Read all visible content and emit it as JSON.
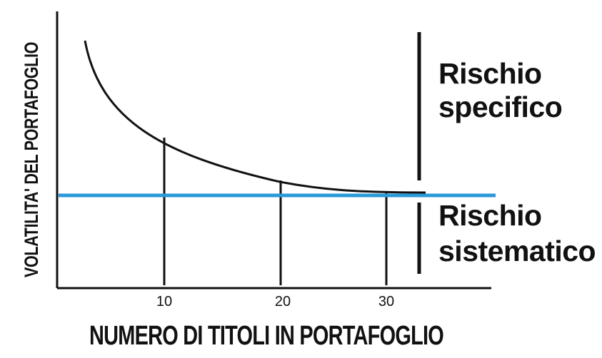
{
  "diagram": {
    "y_axis_title": "VOLATILITA' DEL PORTAFOGLIO",
    "x_axis_title": "NUMERO DI TITOLI IN PORTAFOGLIO",
    "x_ticks": [
      "10",
      "20",
      "30"
    ],
    "regions": {
      "specific": {
        "line1": "Rischio",
        "line2": "specifico"
      },
      "systematic": {
        "line1": "Rischio",
        "line2": "sistematico"
      }
    },
    "colors": {
      "curve": "#111111",
      "systematic_line": "#2a98d9",
      "axes": "#111111"
    }
  }
}
